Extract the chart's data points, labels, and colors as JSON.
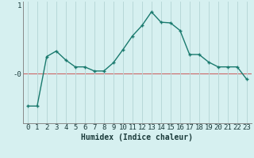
{
  "xlabel": "Humidex (Indice chaleur)",
  "x": [
    0,
    1,
    2,
    3,
    4,
    5,
    6,
    7,
    8,
    9,
    10,
    11,
    12,
    13,
    14,
    15,
    16,
    17,
    18,
    19,
    20,
    21,
    22,
    23
  ],
  "y": [
    -0.47,
    -0.47,
    0.25,
    0.33,
    0.2,
    0.1,
    0.1,
    0.04,
    0.04,
    0.16,
    0.35,
    0.55,
    0.7,
    0.9,
    0.75,
    0.74,
    0.63,
    0.28,
    0.28,
    0.17,
    0.1,
    0.1,
    0.1,
    -0.08
  ],
  "line_color": "#1a7a6e",
  "marker_color": "#1a7a6e",
  "bg_color": "#d6f0f0",
  "grid_color": "#b8d8d8",
  "hline_color": "#cc6666",
  "ylim": [
    -0.72,
    1.05
  ],
  "ytick_vals": [
    1.0,
    0.0
  ],
  "ytick_labels": [
    "1",
    "-0"
  ],
  "xlabel_fontsize": 7,
  "tick_fontsize": 6.5
}
